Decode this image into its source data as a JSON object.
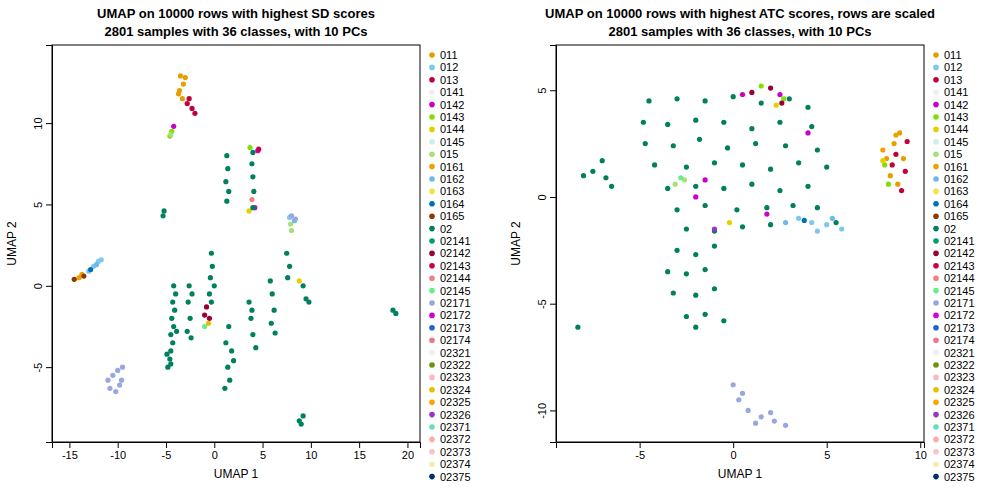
{
  "chart_data": [
    {
      "type": "scatter",
      "title": "UMAP on 10000 rows with highest SD scores",
      "subtitle": "2801 samples with 36 classes, with 10 PCs",
      "xlabel": "UMAP 1",
      "ylabel": "UMAP 2",
      "xlim": [
        -16.8,
        21.3
      ],
      "ylim": [
        -9.6,
        14.8
      ],
      "xticks": [
        -15,
        -10,
        -5,
        0,
        5,
        10,
        15,
        20
      ],
      "yticks": [
        -5,
        0,
        5,
        10
      ],
      "legend": "right",
      "series": [
        {
          "name": "011",
          "color": "#E69F00",
          "x": [
            -3.5,
            -3.2,
            -3.6,
            -3.3,
            -3.7,
            -3.0
          ],
          "values": [
            12.9,
            12.4,
            12.0,
            11.5,
            11.8,
            12.8
          ]
        },
        {
          "name": "012",
          "color": "#7EC8F0",
          "x": [
            -12.5,
            -12.0,
            -11.7,
            -13.0,
            7.8
          ],
          "values": [
            1.2,
            1.5,
            1.6,
            0.9,
            4.2
          ]
        },
        {
          "name": "013",
          "color": "#C2003C",
          "x": [
            -2.8,
            -2.3,
            -2.0,
            -2.6
          ],
          "values": [
            11.2,
            10.9,
            10.6,
            11.5
          ]
        },
        {
          "name": "0141",
          "color": "#EEEEEE",
          "x": [],
          "values": []
        },
        {
          "name": "0142",
          "color": "#CC00CC",
          "x": [
            -4.2,
            4.5,
            4.2
          ],
          "values": [
            9.8,
            8.3,
            4.8
          ]
        },
        {
          "name": "0143",
          "color": "#80E000",
          "x": [
            -4.6,
            -4.4,
            3.7
          ],
          "values": [
            9.2,
            9.5,
            8.5
          ]
        },
        {
          "name": "0144",
          "color": "#E6D000",
          "x": [
            3.6,
            8.8
          ],
          "values": [
            4.6,
            0.3
          ]
        },
        {
          "name": "0145",
          "color": "#CCEEEE",
          "x": [],
          "values": []
        },
        {
          "name": "015",
          "color": "#A6E07A",
          "x": [
            -4.5,
            8.0,
            7.9
          ],
          "values": [
            9.3,
            3.4,
            3.8
          ]
        },
        {
          "name": "0161",
          "color": "#F0A000",
          "x": [
            -14.0,
            -13.7
          ],
          "values": [
            0.5,
            0.7
          ]
        },
        {
          "name": "0162",
          "color": "#6FB8E8",
          "x": [
            -12.2,
            8.3
          ],
          "values": [
            1.3,
            4.0
          ]
        },
        {
          "name": "0163",
          "color": "#F0E442",
          "x": [],
          "values": []
        },
        {
          "name": "0164",
          "color": "#0072B2",
          "x": [
            -12.8
          ],
          "values": [
            1.0
          ]
        },
        {
          "name": "0165",
          "color": "#8B3A00",
          "x": [
            -14.5,
            -13.5
          ],
          "values": [
            0.4,
            0.6
          ]
        },
        {
          "name": "02",
          "color": "#00805E",
          "x": [
            -4.8,
            -4.6,
            -4.5,
            -4.3,
            -4.5,
            -4.2,
            -4.4,
            -4.1,
            -4.3,
            -4.0,
            -4.2,
            -4.5,
            -4.9,
            -3.9,
            -5.3,
            -5.2,
            -2.8,
            -2.5,
            -2.7,
            -2.3,
            -2.6,
            -2.4,
            -0.3,
            -0.2,
            -0.4,
            0.0,
            -0.5,
            -0.3,
            1.5,
            1.2,
            1.8,
            1.4,
            1.6,
            1.1,
            2.0,
            1.3,
            1.4,
            1.2,
            1.5,
            1.3,
            3.6,
            3.8,
            4.0,
            4.3,
            3.9,
            4.0,
            3.9,
            4.0,
            4.1,
            4.0,
            5.8,
            6.0,
            6.2,
            5.9,
            6.3,
            7.5,
            7.8,
            7.6,
            9.2,
            9.5,
            9.8,
            9.0,
            9.2,
            8.8,
            18.5,
            18.8
          ],
          "values": [
            -5.0,
            -4.5,
            -4.0,
            -3.5,
            -3.0,
            -2.5,
            -2.0,
            -1.5,
            -1.0,
            -0.5,
            0.0,
            -4.8,
            -4.2,
            -2.8,
            4.3,
            4.6,
            -2.8,
            -2.0,
            -1.0,
            -0.5,
            0.0,
            -3.2,
            2.0,
            1.2,
            0.5,
            0.0,
            -0.5,
            -1.0,
            -2.5,
            -3.5,
            -4.0,
            -5.0,
            -5.8,
            -6.3,
            -4.6,
            8.0,
            7.2,
            6.4,
            5.8,
            5.2,
            -1.0,
            -2.0,
            -3.0,
            -3.8,
            -1.5,
            8.2,
            7.5,
            6.7,
            5.8,
            4.8,
            0.3,
            -0.5,
            -1.5,
            -2.3,
            -2.9,
            2.0,
            1.2,
            0.5,
            0.0,
            -0.8,
            -1.0,
            -8.5,
            -8.0,
            -8.3,
            -1.5,
            -1.7
          ]
        },
        {
          "name": "02141",
          "color": "#009E73",
          "x": [],
          "values": []
        },
        {
          "name": "02142",
          "color": "#990033",
          "x": [
            -0.8,
            -0.5,
            -1.0
          ],
          "values": [
            -1.3,
            -2.0,
            -1.8
          ]
        },
        {
          "name": "02143",
          "color": "#CC0044",
          "x": [
            4.6
          ],
          "values": [
            8.4
          ]
        },
        {
          "name": "02144",
          "color": "#F08080",
          "x": [
            3.9
          ],
          "values": [
            5.3
          ]
        },
        {
          "name": "02145",
          "color": "#66EE88",
          "x": [
            -1.0
          ],
          "values": [
            -2.5
          ]
        },
        {
          "name": "02171",
          "color": "#9AA6E0",
          "x": [
            -10.5,
            -10.0,
            -9.6,
            -10.8,
            -10.2,
            -9.8,
            -11.0,
            -9.5,
            8.0,
            8.4
          ],
          "values": [
            -5.5,
            -5.2,
            -5.8,
            -6.3,
            -6.5,
            -6.1,
            -5.8,
            -5.0,
            4.3,
            4.1
          ]
        },
        {
          "name": "02172",
          "color": "#D000D0",
          "x": [],
          "values": []
        },
        {
          "name": "02173",
          "color": "#1E66CC",
          "x": [],
          "values": []
        },
        {
          "name": "02174",
          "color": "#EE7788",
          "x": [],
          "values": []
        },
        {
          "name": "02321",
          "color": "#EEEEEE",
          "x": [],
          "values": []
        },
        {
          "name": "02322",
          "color": "#669900",
          "x": [],
          "values": []
        },
        {
          "name": "02323",
          "color": "#FFB6C1",
          "x": [],
          "values": []
        },
        {
          "name": "02324",
          "color": "#E6C000",
          "x": [
            -0.6
          ],
          "values": [
            -2.3
          ]
        },
        {
          "name": "02325",
          "color": "#FFA500",
          "x": [],
          "values": []
        },
        {
          "name": "02326",
          "color": "#9933CC",
          "x": [],
          "values": []
        },
        {
          "name": "02371",
          "color": "#66DDBB",
          "x": [],
          "values": []
        },
        {
          "name": "02372",
          "color": "#FFAAAA",
          "x": [],
          "values": []
        },
        {
          "name": "02373",
          "color": "#FFC0CB",
          "x": [],
          "values": []
        },
        {
          "name": "02374",
          "color": "#EEEEAA",
          "x": [],
          "values": []
        },
        {
          "name": "02375",
          "color": "#003366",
          "x": [],
          "values": []
        }
      ]
    },
    {
      "type": "scatter",
      "title": "UMAP on 10000 rows with highest ATC scores, rows are scaled",
      "subtitle": "2801 samples with 36 classes, with 10 PCs",
      "xlabel": "UMAP 1",
      "ylabel": "UMAP 2",
      "xlim": [
        -9.47,
        10.2
      ],
      "ylim": [
        -11.48,
        7.12
      ],
      "xticks": [
        -5,
        0,
        5,
        10
      ],
      "yticks": [
        -10,
        -5,
        0,
        5
      ],
      "legend": "right",
      "series": [
        {
          "name": "011",
          "color": "#E69F00",
          "x": [
            8.2,
            8.6,
            8.9,
            8.4,
            8.8,
            9.1
          ],
          "values": [
            1.8,
            2.5,
            3.0,
            1.0,
            0.6,
            1.8
          ]
        },
        {
          "name": "012",
          "color": "#7EC8F0",
          "x": [
            3.5,
            4.2,
            5.0,
            5.8,
            4.5
          ],
          "values": [
            -1.0,
            -1.2,
            -1.3,
            -1.5,
            -1.6
          ]
        },
        {
          "name": "013",
          "color": "#C2003C",
          "x": [
            8.7,
            9.2,
            9.0,
            9.3,
            8.5
          ],
          "values": [
            2.0,
            1.2,
            0.3,
            2.6,
            1.5
          ]
        },
        {
          "name": "0141",
          "color": "#EEEEEE",
          "x": [],
          "values": []
        },
        {
          "name": "0142",
          "color": "#CC00CC",
          "x": [
            2.5,
            0.5,
            -1.5,
            -2.0,
            4.0,
            1.8
          ],
          "values": [
            4.8,
            4.8,
            0.8,
            0.0,
            3.0,
            -0.8
          ]
        },
        {
          "name": "0143",
          "color": "#80E000",
          "x": [
            8.3,
            8.1,
            1.5,
            2.7
          ],
          "values": [
            0.6,
            1.5,
            5.2,
            4.6
          ]
        },
        {
          "name": "0144",
          "color": "#E6D000",
          "x": [
            8.0,
            2.3,
            -0.2
          ],
          "values": [
            1.7,
            4.3,
            -1.2
          ]
        },
        {
          "name": "0145",
          "color": "#CCEEEE",
          "x": [],
          "values": []
        },
        {
          "name": "015",
          "color": "#A6E07A",
          "x": [
            -3.1,
            -2.6
          ],
          "values": [
            0.6,
            0.8
          ]
        },
        {
          "name": "0161",
          "color": "#F0A000",
          "x": [
            8.0,
            8.7
          ],
          "values": [
            2.2,
            2.9
          ]
        },
        {
          "name": "0162",
          "color": "#6FB8E8",
          "x": [
            2.8,
            5.3
          ],
          "values": [
            -1.2,
            -1.0
          ]
        },
        {
          "name": "0163",
          "color": "#F0E442",
          "x": [],
          "values": []
        },
        {
          "name": "0164",
          "color": "#0072B2",
          "x": [
            3.8
          ],
          "values": [
            -1.1
          ]
        },
        {
          "name": "0165",
          "color": "#8B3A00",
          "x": [],
          "values": []
        },
        {
          "name": "02",
          "color": "#00805E",
          "x": [
            -4.5,
            -3.0,
            -1.5,
            0.0,
            1.5,
            3.0,
            4.0,
            -4.8,
            -3.5,
            -2.0,
            -0.5,
            1.0,
            2.5,
            4.2,
            -4.7,
            -3.2,
            -1.8,
            -0.3,
            1.2,
            2.8,
            4.5,
            -4.2,
            -2.5,
            -1.0,
            0.5,
            2.0,
            3.5,
            5.0,
            -3.5,
            -2.0,
            -0.5,
            1.0,
            2.5,
            4.0,
            -3.0,
            -1.5,
            0.2,
            1.8,
            3.2,
            -2.5,
            -1.0,
            0.5,
            2.0,
            -3.0,
            -2.0,
            -1.0,
            -3.5,
            -2.5,
            -1.5,
            -3.2,
            -2.0,
            -1.0,
            -2.5,
            -1.5,
            -0.5,
            -2.0,
            -7.5,
            -8.0,
            -6.8,
            -6.5,
            -7.0,
            -8.3,
            4.5,
            5.5
          ],
          "values": [
            4.5,
            4.6,
            4.5,
            4.7,
            4.4,
            4.6,
            4.2,
            3.5,
            3.4,
            3.6,
            3.5,
            3.2,
            3.5,
            3.3,
            2.5,
            2.4,
            2.7,
            2.3,
            2.5,
            2.4,
            2.2,
            1.5,
            1.4,
            1.6,
            1.5,
            1.3,
            1.6,
            1.4,
            0.4,
            0.5,
            0.4,
            0.6,
            0.3,
            0.5,
            -0.6,
            -0.4,
            -0.6,
            -0.5,
            -0.4,
            -1.5,
            -1.6,
            -1.4,
            -1.3,
            -2.5,
            -2.7,
            -2.3,
            -3.5,
            -3.6,
            -3.4,
            -4.5,
            -4.6,
            -4.3,
            -5.6,
            -5.5,
            -5.8,
            -6.1,
            1.2,
            1.0,
            0.9,
            0.5,
            1.7,
            -6.1,
            -0.5,
            -1.2
          ]
        },
        {
          "name": "02141",
          "color": "#009E73",
          "x": [],
          "values": []
        },
        {
          "name": "02142",
          "color": "#990033",
          "x": [
            2.0,
            1.0,
            2.6
          ],
          "values": [
            5.1,
            4.9,
            4.4
          ]
        },
        {
          "name": "02143",
          "color": "#CC0044",
          "x": [],
          "values": []
        },
        {
          "name": "02144",
          "color": "#F08080",
          "x": [],
          "values": []
        },
        {
          "name": "02145",
          "color": "#66EE88",
          "x": [
            -2.8
          ],
          "values": [
            0.9
          ]
        },
        {
          "name": "02171",
          "color": "#9AA6E0",
          "x": [
            0.0,
            0.3,
            0.8,
            1.5,
            2.2,
            2.8,
            0.5,
            1.2,
            2.0
          ],
          "values": [
            -8.8,
            -9.5,
            -10.0,
            -10.3,
            -10.5,
            -10.7,
            -9.2,
            -10.6,
            -10.1
          ]
        },
        {
          "name": "02172",
          "color": "#D000D0",
          "x": [],
          "values": []
        },
        {
          "name": "02173",
          "color": "#1E66CC",
          "x": [],
          "values": []
        },
        {
          "name": "02174",
          "color": "#EE7788",
          "x": [],
          "values": []
        },
        {
          "name": "02321",
          "color": "#EEEEEE",
          "x": [],
          "values": []
        },
        {
          "name": "02322",
          "color": "#669900",
          "x": [],
          "values": []
        },
        {
          "name": "02323",
          "color": "#FFB6C1",
          "x": [],
          "values": []
        },
        {
          "name": "02324",
          "color": "#E6C000",
          "x": [],
          "values": []
        },
        {
          "name": "02325",
          "color": "#FFA500",
          "x": [],
          "values": []
        },
        {
          "name": "02326",
          "color": "#9933CC",
          "x": [
            -1.0
          ],
          "values": [
            -1.5
          ]
        },
        {
          "name": "02371",
          "color": "#66DDBB",
          "x": [],
          "values": []
        },
        {
          "name": "02372",
          "color": "#FFAAAA",
          "x": [],
          "values": []
        },
        {
          "name": "02373",
          "color": "#FFC0CB",
          "x": [],
          "values": []
        },
        {
          "name": "02374",
          "color": "#EEEEAA",
          "x": [],
          "values": []
        },
        {
          "name": "02375",
          "color": "#003366",
          "x": [],
          "values": []
        }
      ]
    }
  ]
}
